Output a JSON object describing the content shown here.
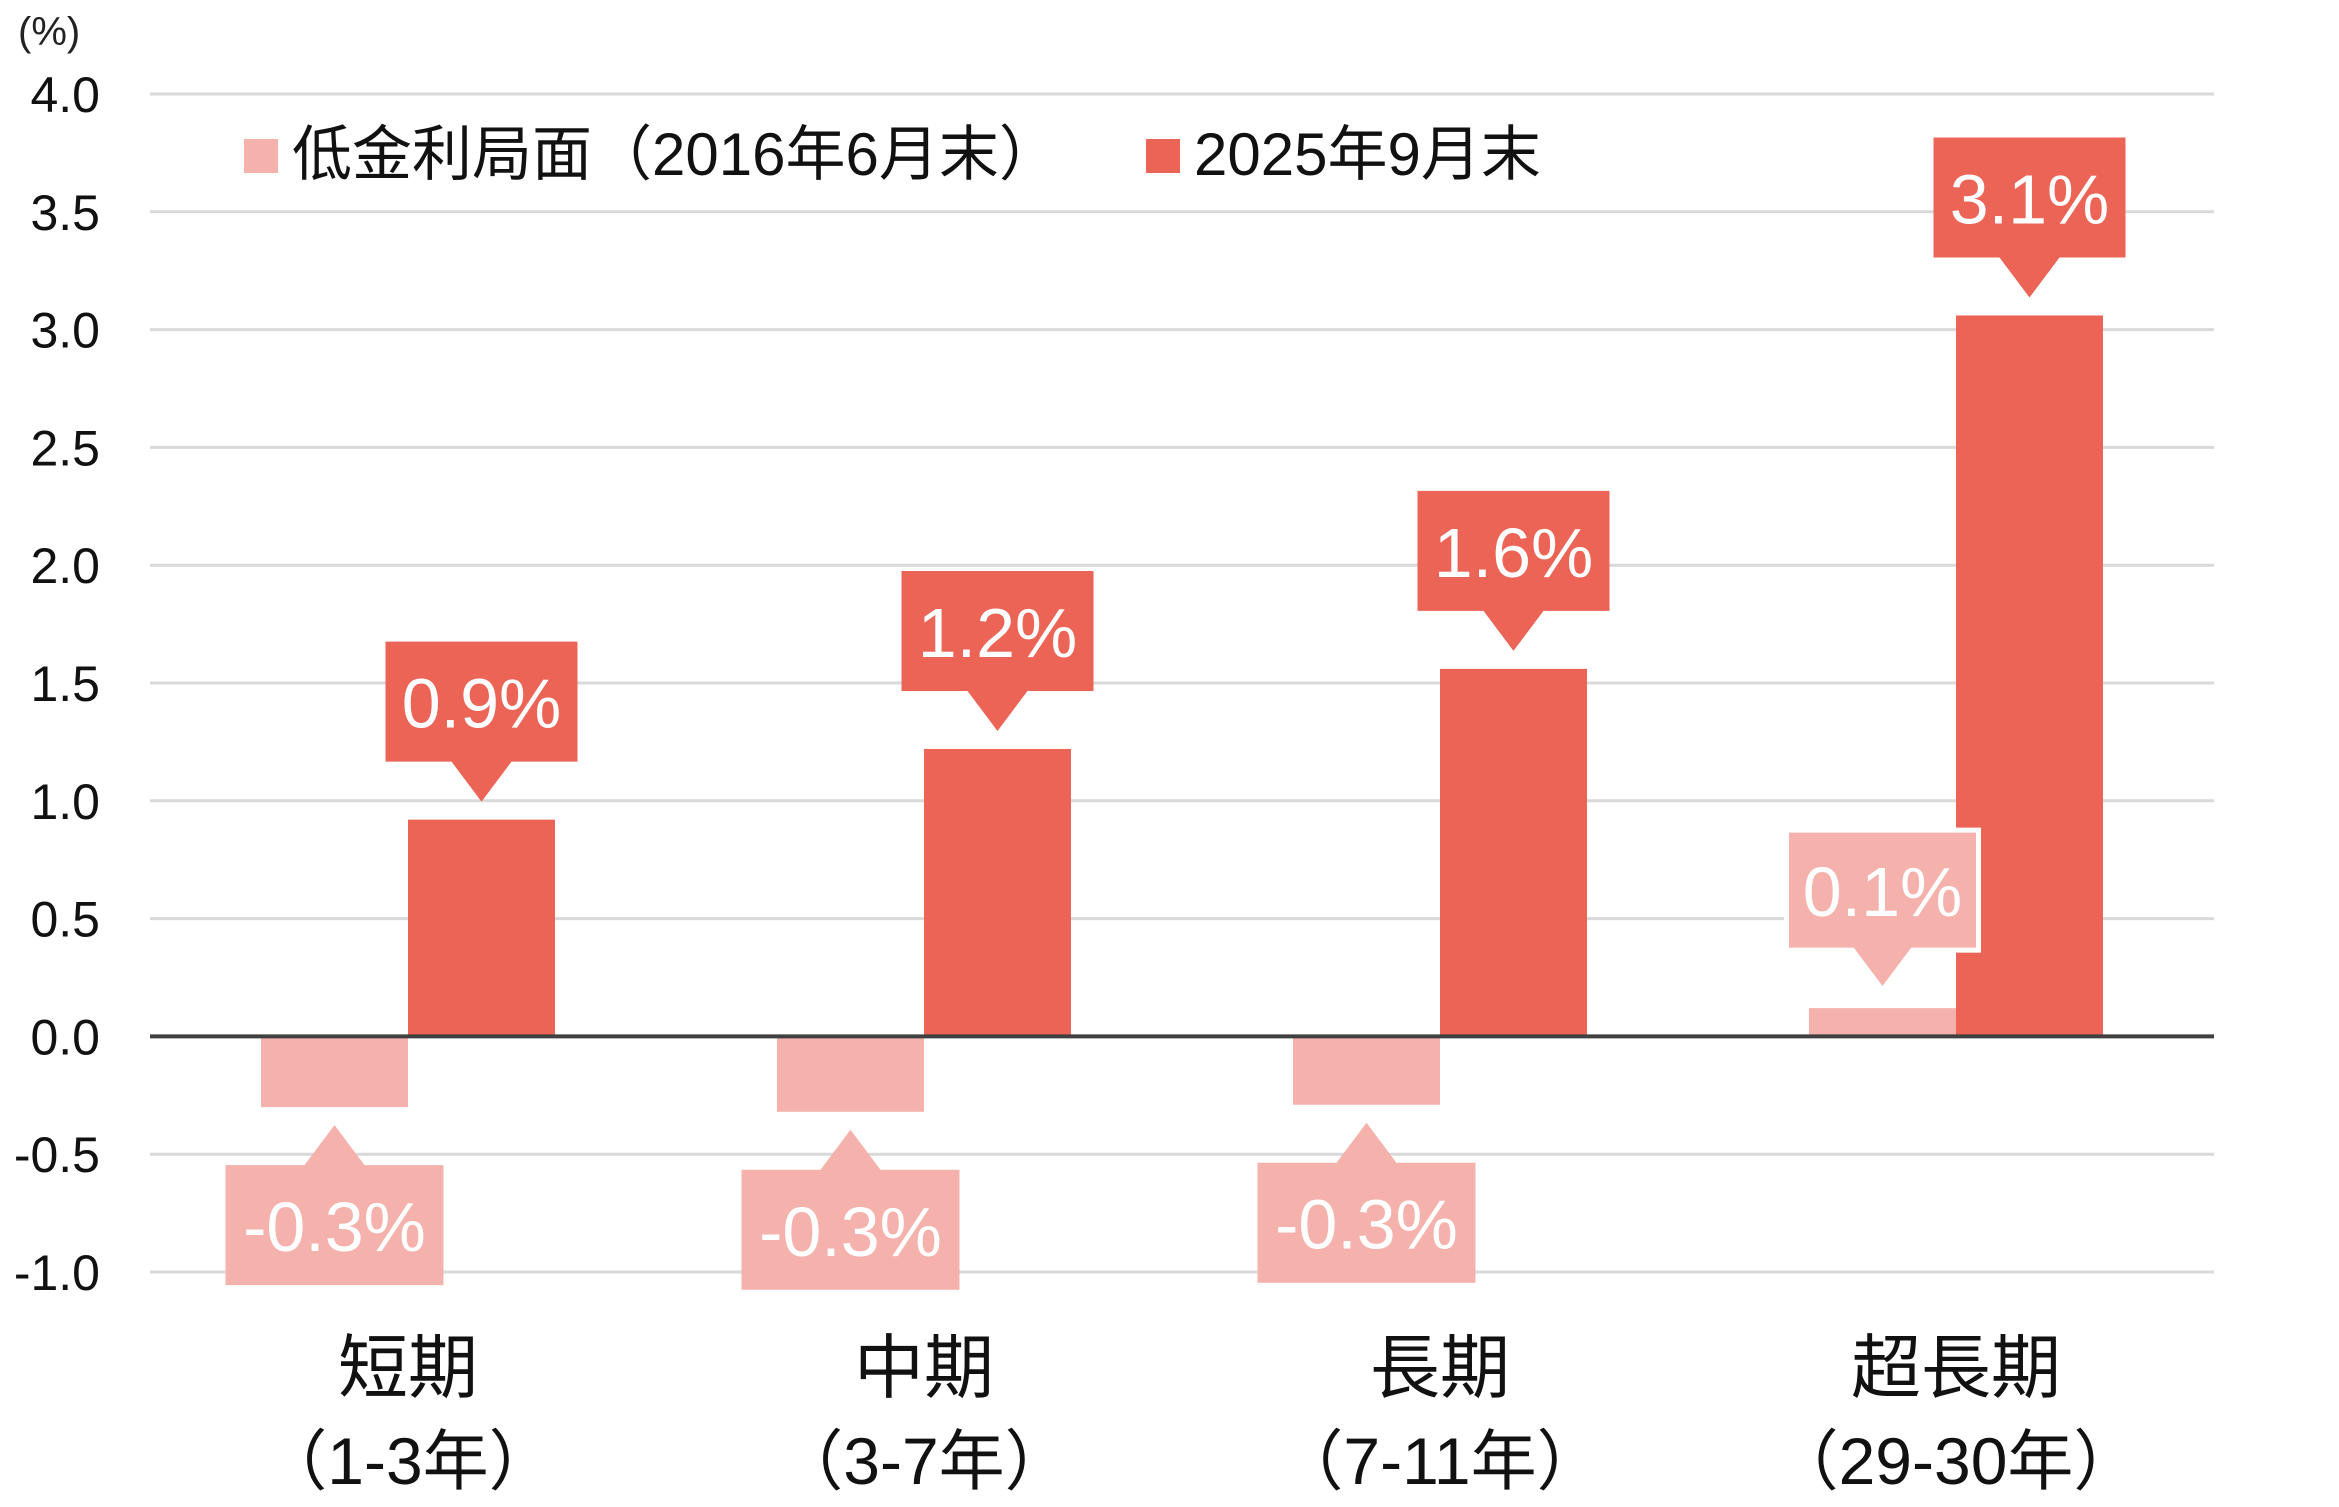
{
  "chart_data": {
    "type": "bar",
    "title": "",
    "ylabel": "(%)",
    "xlabel": "",
    "ylim": [
      -1.0,
      4.0
    ],
    "yticks": [
      "4.0",
      "3.5",
      "3.0",
      "2.5",
      "2.0",
      "1.5",
      "1.0",
      "0.5",
      "0.0",
      "-0.5",
      "-1.0"
    ],
    "ytick_values": [
      4.0,
      3.5,
      3.0,
      2.5,
      2.0,
      1.5,
      1.0,
      0.5,
      0.0,
      -0.5,
      -1.0
    ],
    "grid": true,
    "legend_position": "top-left",
    "categories": [
      {
        "name": "短期",
        "sub": "（1-3年）"
      },
      {
        "name": "中期",
        "sub": "（3-7年）"
      },
      {
        "name": "長期",
        "sub": "（7-11年）"
      },
      {
        "name": "超長期",
        "sub": "（29-30年）"
      }
    ],
    "series": [
      {
        "name": "低金利局面（2016年6月末）",
        "color": "#F5B1AB",
        "values": [
          -0.3,
          -0.32,
          -0.29,
          0.12
        ],
        "labels": [
          "-0.3%",
          "-0.3%",
          "-0.3%",
          "0.1%"
        ]
      },
      {
        "name": "2025年9月末",
        "color": "#EB6455",
        "values": [
          0.92,
          1.22,
          1.56,
          3.06
        ],
        "labels": [
          "0.9%",
          "1.2%",
          "1.6%",
          "3.1%"
        ]
      }
    ]
  }
}
